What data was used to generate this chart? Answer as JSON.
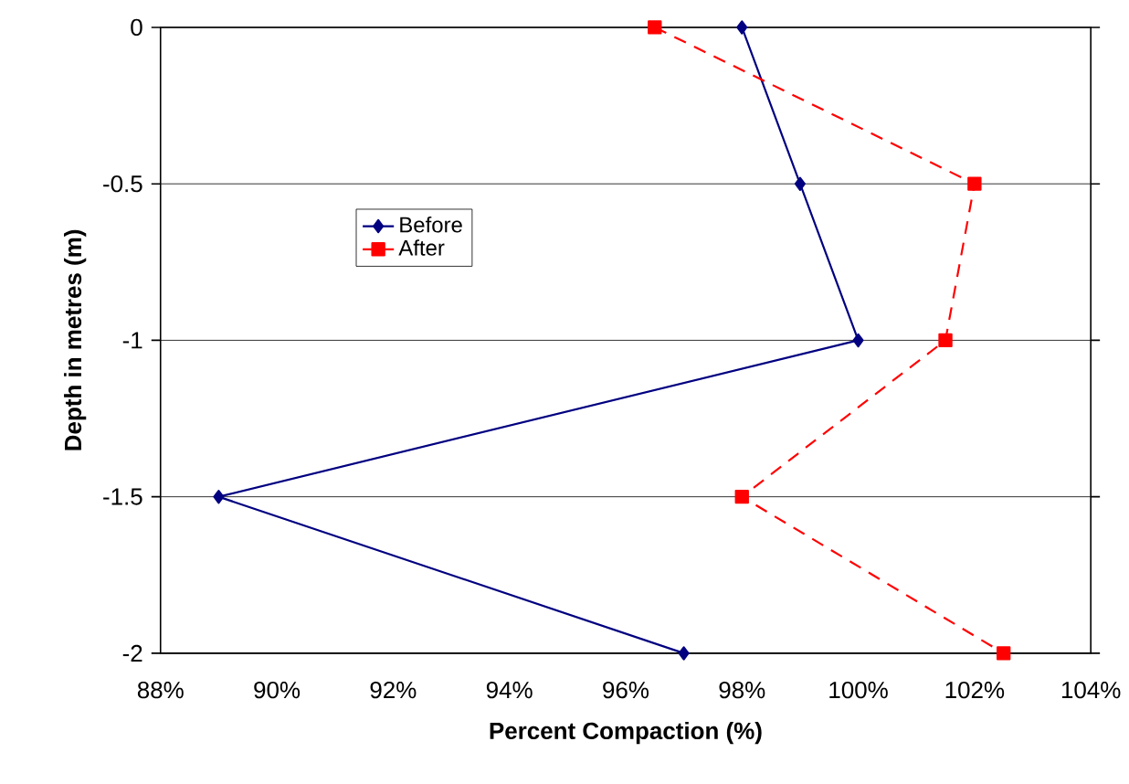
{
  "chart_data": {
    "type": "line",
    "xlabel": "Percent Compaction (%)",
    "ylabel": "Depth in metres (m)",
    "xlim": [
      88,
      104
    ],
    "xticks": [
      {
        "value": 88,
        "label": "88%"
      },
      {
        "value": 90,
        "label": "90%"
      },
      {
        "value": 92,
        "label": "92%"
      },
      {
        "value": 94,
        "label": "94%"
      },
      {
        "value": 96,
        "label": "96%"
      },
      {
        "value": 98,
        "label": "98%"
      },
      {
        "value": 100,
        "label": "100%"
      },
      {
        "value": 102,
        "label": "102%"
      },
      {
        "value": 104,
        "label": "104%"
      }
    ],
    "ylim": [
      -2,
      0
    ],
    "yticks": [
      -2,
      -1.5,
      -1,
      -0.5,
      0
    ],
    "grid": "y",
    "legend": "top left",
    "series": [
      {
        "name": "Before",
        "color": "#000080",
        "marker": "diamond",
        "line_style": "solid",
        "x": [
          98,
          99,
          100,
          89,
          97
        ],
        "values": [
          0,
          -0.5,
          -1,
          -1.5,
          -2
        ]
      },
      {
        "name": "After",
        "color": "#ff0000",
        "marker": "square",
        "line_style": "dashed",
        "x": [
          96.5,
          102,
          101.5,
          98,
          102.5
        ],
        "values": [
          0,
          -0.5,
          -1,
          -1.5,
          -2
        ]
      }
    ]
  }
}
